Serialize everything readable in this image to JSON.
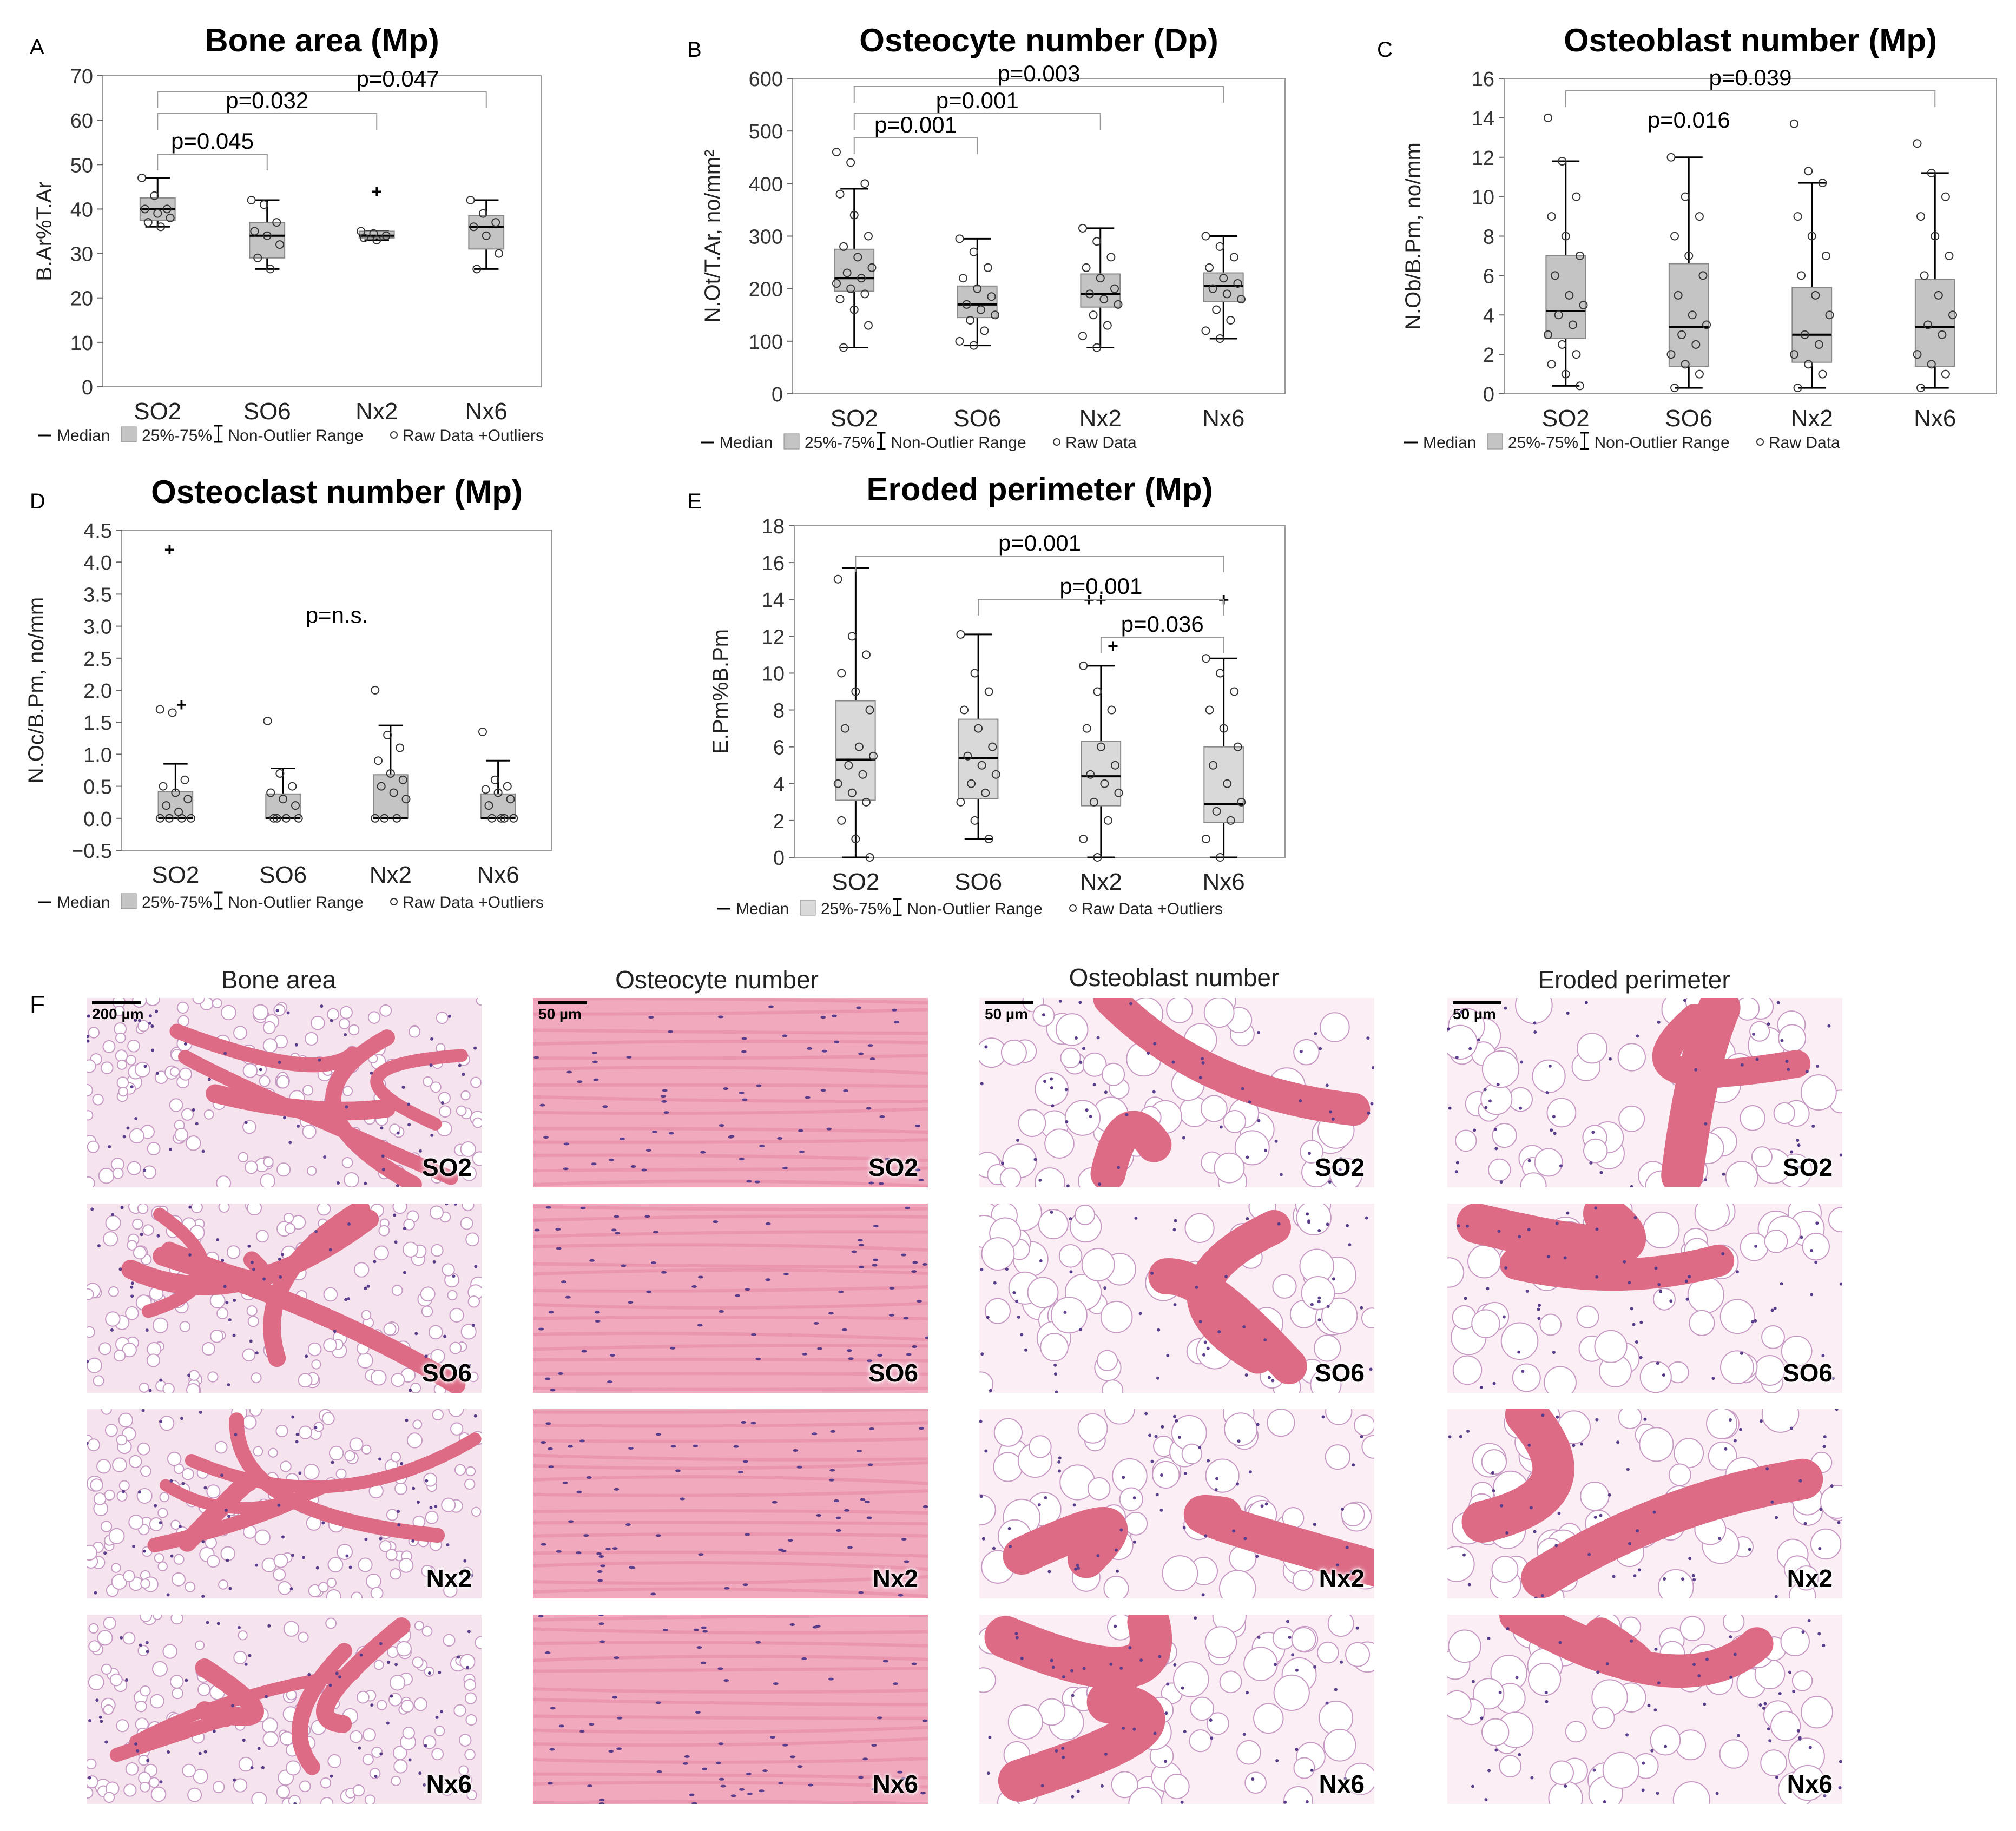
{
  "chart_data": [
    {
      "panel": "A",
      "type": "box",
      "title": "Bone area (Mp)",
      "ylabel": "B.Ar%T.Ar",
      "ylim": [
        0,
        70
      ],
      "yticks": [
        0,
        10,
        20,
        30,
        40,
        50,
        60,
        70
      ],
      "categories": [
        "SO2",
        "SO6",
        "Nx2",
        "Nx6"
      ],
      "boxes": [
        {
          "median": 40,
          "q1": 37.5,
          "q3": 42.5,
          "whisker_low": 36,
          "whisker_high": 47,
          "points": [
            47,
            43,
            40,
            40,
            39,
            38,
            37,
            36
          ],
          "outliers": []
        },
        {
          "median": 34,
          "q1": 29,
          "q3": 37,
          "whisker_low": 26.5,
          "whisker_high": 42,
          "points": [
            42,
            41,
            37,
            35,
            34,
            32,
            29,
            26.5
          ],
          "outliers": []
        },
        {
          "median": 34,
          "q1": 33.5,
          "q3": 35,
          "whisker_low": 33,
          "whisker_high": 35,
          "points": [
            35,
            34.5,
            34,
            33.5,
            33
          ],
          "outliers": [
            44
          ]
        },
        {
          "median": 36,
          "q1": 31,
          "q3": 38.5,
          "whisker_low": 26.5,
          "whisker_high": 42,
          "points": [
            42,
            39,
            37,
            36,
            34,
            30,
            26.5
          ],
          "outliers": []
        }
      ],
      "brackets": [
        {
          "from": 0,
          "to": 1,
          "label": "p=0.045"
        },
        {
          "from": 0,
          "to": 2,
          "label": "p=0.032"
        },
        {
          "from": 0,
          "to": 3,
          "label": "p=0.047"
        }
      ],
      "legend": [
        "Median",
        "25%-75%",
        "Non-Outlier Range",
        "Raw Data +Outliers"
      ]
    },
    {
      "panel": "B",
      "type": "box",
      "title": "Osteocyte number (Dp)",
      "ylabel": "N.Ot/T.Ar, no/mm²",
      "ylim": [
        0,
        600
      ],
      "yticks": [
        0,
        100,
        200,
        300,
        400,
        500,
        600
      ],
      "categories": [
        "SO2",
        "SO6",
        "Nx2",
        "Nx6"
      ],
      "boxes": [
        {
          "median": 220,
          "q1": 195,
          "q3": 275,
          "whisker_low": 88,
          "whisker_high": 390,
          "points": [
            460,
            440,
            400,
            380,
            340,
            300,
            280,
            260,
            240,
            230,
            220,
            210,
            200,
            190,
            180,
            160,
            130,
            88
          ],
          "outliers": []
        },
        {
          "median": 170,
          "q1": 145,
          "q3": 205,
          "whisker_low": 92,
          "whisker_high": 295,
          "points": [
            295,
            270,
            240,
            220,
            200,
            185,
            170,
            160,
            150,
            140,
            120,
            100,
            92
          ],
          "outliers": []
        },
        {
          "median": 190,
          "q1": 165,
          "q3": 228,
          "whisker_low": 88,
          "whisker_high": 315,
          "points": [
            315,
            290,
            260,
            240,
            220,
            200,
            190,
            180,
            170,
            150,
            130,
            110,
            88
          ],
          "outliers": []
        },
        {
          "median": 205,
          "q1": 175,
          "q3": 230,
          "whisker_low": 105,
          "whisker_high": 300,
          "points": [
            300,
            280,
            260,
            240,
            220,
            210,
            200,
            190,
            180,
            160,
            140,
            120,
            105
          ],
          "outliers": []
        }
      ],
      "brackets": [
        {
          "from": 0,
          "to": 1,
          "label": "p=0.001"
        },
        {
          "from": 0,
          "to": 2,
          "label": "p=0.001"
        },
        {
          "from": 0,
          "to": 3,
          "label": "p=0.003"
        }
      ],
      "legend": [
        "Median",
        "25%-75%",
        "Non-Outlier Range",
        "Raw Data"
      ]
    },
    {
      "panel": "C",
      "type": "box",
      "title": "Osteoblast number (Mp)",
      "ylabel": "N.Ob/B.Pm, no/mm",
      "ylim": [
        0,
        16
      ],
      "yticks": [
        0,
        2,
        4,
        6,
        8,
        10,
        12,
        14,
        16
      ],
      "categories": [
        "SO2",
        "SO6",
        "Nx2",
        "Nx6"
      ],
      "boxes": [
        {
          "median": 4.2,
          "q1": 2.8,
          "q3": 7.0,
          "whisker_low": 0.4,
          "whisker_high": 11.8,
          "points": [
            14,
            11.8,
            10,
            9,
            8,
            7,
            6,
            5,
            4.5,
            4,
            3.5,
            3,
            2.5,
            2,
            1.5,
            1,
            0.4
          ],
          "outliers": []
        },
        {
          "median": 3.4,
          "q1": 1.4,
          "q3": 6.6,
          "whisker_low": 0.3,
          "whisker_high": 12,
          "points": [
            12,
            10,
            9,
            8,
            7,
            6,
            5,
            4,
            3.5,
            3,
            2.5,
            2,
            1.5,
            1,
            0.3
          ],
          "outliers": []
        },
        {
          "median": 3.0,
          "q1": 1.6,
          "q3": 5.4,
          "whisker_low": 0.3,
          "whisker_high": 10.7,
          "points": [
            13.7,
            11.3,
            10.7,
            9,
            8,
            7,
            6,
            5,
            4,
            3,
            2.5,
            2,
            1.5,
            1,
            0.3
          ],
          "outliers": []
        },
        {
          "median": 3.4,
          "q1": 1.4,
          "q3": 5.8,
          "whisker_low": 0.3,
          "whisker_high": 11.2,
          "points": [
            12.7,
            11.2,
            10,
            9,
            8,
            7,
            6,
            5,
            4,
            3.5,
            3,
            2,
            1.5,
            1,
            0.3
          ],
          "outliers": []
        }
      ],
      "brackets": [
        {
          "from": 0,
          "to": 3,
          "label": "p=0.039"
        }
      ],
      "extra_labels": [
        {
          "label": "p=0.016",
          "at": 1
        }
      ],
      "legend": [
        "Median",
        "25%-75%",
        "Non-Outlier Range",
        "Raw Data"
      ]
    },
    {
      "panel": "D",
      "type": "box",
      "title": "Osteoclast number (Mp)",
      "ylabel": "N.Oc/B.Pm, no/mm",
      "ylim": [
        -0.5,
        4.5
      ],
      "yticks": [
        -0.5,
        0,
        0.5,
        1,
        1.5,
        2,
        2.5,
        3,
        3.5,
        4,
        4.5
      ],
      "ytick_labels": [
        "−0.5",
        "0.0",
        "0.5",
        "1.0",
        "1.5",
        "2.0",
        "2.5",
        "3.0",
        "3.5",
        "4.0",
        "4.5"
      ],
      "categories": [
        "SO2",
        "SO6",
        "Nx2",
        "Nx6"
      ],
      "boxes": [
        {
          "median": 0,
          "q1": 0,
          "q3": 0.42,
          "whisker_low": 0,
          "whisker_high": 0.85,
          "points": [
            1.7,
            1.65,
            0.6,
            0.5,
            0.4,
            0.3,
            0.2,
            0.1,
            0,
            0,
            0,
            0
          ],
          "outliers": [
            4.2,
            1.78
          ]
        },
        {
          "median": 0,
          "q1": 0,
          "q3": 0.38,
          "whisker_low": 0,
          "whisker_high": 0.78,
          "points": [
            1.52,
            0.7,
            0.5,
            0.4,
            0.3,
            0.2,
            0,
            0,
            0,
            0
          ],
          "outliers": []
        },
        {
          "median": 0,
          "q1": 0,
          "q3": 0.68,
          "whisker_low": 0,
          "whisker_high": 1.45,
          "points": [
            2.0,
            1.3,
            1.1,
            0.9,
            0.7,
            0.6,
            0.5,
            0.4,
            0.3,
            0,
            0,
            0
          ],
          "outliers": []
        },
        {
          "median": 0,
          "q1": 0,
          "q3": 0.38,
          "whisker_low": 0,
          "whisker_high": 0.9,
          "points": [
            1.35,
            0.6,
            0.5,
            0.45,
            0.4,
            0.3,
            0.2,
            0,
            0,
            0,
            0
          ],
          "outliers": []
        }
      ],
      "annotation": "p=n.s.",
      "legend": [
        "Median",
        "25%-75%",
        "Non-Outlier Range",
        "Raw Data +Outliers"
      ]
    },
    {
      "panel": "E",
      "type": "box",
      "title": "Eroded perimeter (Mp)",
      "ylabel": "E.Pm%B.Pm",
      "ylim": [
        0,
        18
      ],
      "yticks": [
        0,
        2,
        4,
        6,
        8,
        10,
        12,
        14,
        16,
        18
      ],
      "categories": [
        "SO2",
        "SO6",
        "Nx2",
        "Nx6"
      ],
      "boxes": [
        {
          "median": 5.3,
          "q1": 3.1,
          "q3": 8.5,
          "whisker_low": 0,
          "whisker_high": 15.7,
          "points": [
            15.1,
            12,
            11,
            10,
            9,
            8,
            7,
            6,
            5.5,
            5,
            4.5,
            4,
            3.5,
            3,
            2,
            1,
            0
          ],
          "outliers": []
        },
        {
          "median": 5.4,
          "q1": 3.2,
          "q3": 7.5,
          "whisker_low": 1,
          "whisker_high": 12.1,
          "points": [
            12.1,
            10,
            9,
            8,
            7,
            6,
            5.5,
            5,
            4.5,
            4,
            3.5,
            3,
            2,
            1
          ],
          "outliers": []
        },
        {
          "median": 4.4,
          "q1": 2.8,
          "q3": 6.3,
          "whisker_low": 0,
          "whisker_high": 10.4,
          "points": [
            10.4,
            9,
            8,
            7,
            6,
            5,
            4.5,
            4,
            3.5,
            3,
            2,
            1,
            0
          ],
          "outliers": [
            14,
            14,
            11.5
          ]
        },
        {
          "median": 2.9,
          "q1": 1.9,
          "q3": 6.0,
          "whisker_low": 0,
          "whisker_high": 10.8,
          "points": [
            10.8,
            10,
            9,
            8,
            7,
            6,
            5,
            4,
            3,
            2.5,
            2,
            1,
            0
          ],
          "outliers": [
            14
          ]
        }
      ],
      "brackets": [
        {
          "from": 0,
          "to": 3,
          "label": "p=0.001"
        },
        {
          "from": 1,
          "to": 3,
          "label": "p=0.001"
        },
        {
          "from": 2,
          "to": 3,
          "label": "p=0.036"
        }
      ],
      "legend": [
        "Median",
        "25%-75%",
        "Non-Outlier Range",
        "Raw Data +Outliers"
      ]
    }
  ],
  "panel_letters": [
    "A",
    "B",
    "C",
    "D",
    "E",
    "F"
  ],
  "histology": {
    "letter": "F",
    "columns": [
      {
        "title": "Bone area",
        "scale": "200 µm"
      },
      {
        "title": "Osteocyte number",
        "scale": "50 µm"
      },
      {
        "title": "Osteoblast number",
        "scale": "50 µm"
      },
      {
        "title": "Eroded perimeter",
        "scale": "50 µm"
      }
    ],
    "rows": [
      "SO2",
      "SO6",
      "Nx2",
      "Nx6"
    ],
    "colors": {
      "bone": "#dd6b86",
      "marrow": "#f5e4ee",
      "fat": "#ffffff",
      "nuclei": "#5a3d8a",
      "stroma": "#c79ac4"
    }
  }
}
